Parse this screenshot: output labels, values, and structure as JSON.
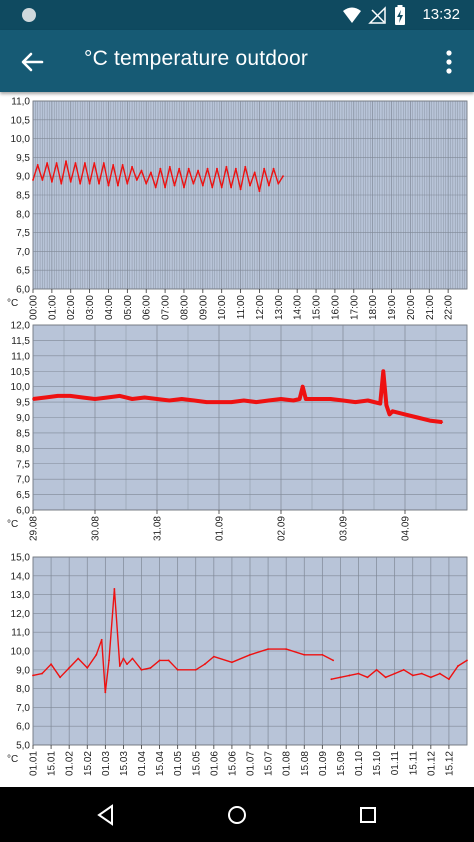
{
  "status_bar": {
    "time": "13:32",
    "icons": [
      "notification-dot-icon",
      "wifi-icon",
      "no-signal-icon",
      "battery-charging-icon"
    ]
  },
  "app_bar": {
    "title": "°C temperature outdoor",
    "back_icon": "arrow-back-icon",
    "menu_icon": "more-vert-icon"
  },
  "nav_bar": {
    "icons": [
      "nav-back-icon",
      "nav-home-icon",
      "nav-recents-icon"
    ]
  },
  "colors": {
    "plot_background": "#b8c4d8",
    "grid": "#7f8896",
    "series": "#ee1111",
    "app_bar": "#165a74",
    "status_bar": "#0f4a60"
  },
  "chart_data": [
    {
      "type": "line",
      "ylabel": "°C",
      "ylim": [
        6.0,
        11.0
      ],
      "yticks": [
        "6,0",
        "6,5",
        "7,0",
        "7,5",
        "8,0",
        "8,5",
        "9,0",
        "9,5",
        "10,0",
        "10,5",
        "11,0"
      ],
      "xticks": [
        "00:00",
        "01:00",
        "02:00",
        "03:00",
        "04:00",
        "05:00",
        "06:00",
        "07:00",
        "08:00",
        "09:00",
        "10:00",
        "11:00",
        "12:00",
        "13:00",
        "14:00",
        "15:00",
        "16:00",
        "17:00",
        "18:00",
        "19:00",
        "20:00",
        "21:00",
        "22:00"
      ],
      "xlim": [
        0,
        23
      ],
      "series": [
        {
          "x": [
            0.0,
            0.25,
            0.5,
            0.75,
            1.0,
            1.25,
            1.5,
            1.75,
            2.0,
            2.25,
            2.5,
            2.75,
            3.0,
            3.25,
            3.5,
            3.75,
            4.0,
            4.25,
            4.5,
            4.75,
            5.0,
            5.25,
            5.5,
            5.75,
            6.0,
            6.25,
            6.5,
            6.75,
            7.0,
            7.25,
            7.5,
            7.75,
            8.0,
            8.25,
            8.5,
            8.75,
            9.0,
            9.25,
            9.5,
            9.75,
            10.0,
            10.25,
            10.5,
            10.75,
            11.0,
            11.25,
            11.5,
            11.75,
            12.0,
            12.25,
            12.5,
            12.75,
            13.0,
            13.25
          ],
          "values": [
            8.9,
            9.3,
            8.9,
            9.35,
            8.85,
            9.35,
            8.8,
            9.4,
            8.85,
            9.35,
            8.8,
            9.35,
            8.8,
            9.35,
            8.8,
            9.35,
            8.75,
            9.3,
            8.75,
            9.3,
            8.8,
            9.25,
            8.9,
            9.15,
            8.8,
            9.1,
            8.7,
            9.2,
            8.7,
            9.25,
            8.75,
            9.2,
            8.7,
            9.2,
            8.8,
            9.15,
            8.75,
            9.2,
            8.7,
            9.2,
            8.7,
            9.25,
            8.7,
            9.2,
            8.65,
            9.25,
            8.75,
            9.1,
            8.6,
            9.2,
            8.75,
            9.2,
            8.8,
            9.0
          ]
        }
      ]
    },
    {
      "type": "line",
      "ylabel": "°C",
      "ylim": [
        6.0,
        12.0
      ],
      "yticks": [
        "6,0",
        "6,5",
        "7,0",
        "7,5",
        "8,0",
        "8,5",
        "9,0",
        "9,5",
        "10,0",
        "10,5",
        "11,0",
        "11,5",
        "12,0"
      ],
      "xticks": [
        "29.08",
        "30.08",
        "31.08",
        "01.09",
        "02.09",
        "03.09",
        "04.09"
      ],
      "xlim": [
        0,
        7
      ],
      "series": [
        {
          "x": [
            0,
            0.2,
            0.4,
            0.6,
            0.8,
            1.0,
            1.2,
            1.4,
            1.6,
            1.8,
            2.0,
            2.2,
            2.4,
            2.6,
            2.8,
            3.0,
            3.2,
            3.4,
            3.6,
            3.8,
            4.0,
            4.2,
            4.3,
            4.35,
            4.4,
            4.6,
            4.8,
            5.0,
            5.2,
            5.4,
            5.6,
            5.65,
            5.7,
            5.75,
            5.8,
            6.0,
            6.2,
            6.4,
            6.6
          ],
          "values": [
            9.6,
            9.65,
            9.7,
            9.7,
            9.65,
            9.6,
            9.65,
            9.7,
            9.6,
            9.65,
            9.6,
            9.55,
            9.6,
            9.55,
            9.5,
            9.5,
            9.5,
            9.55,
            9.5,
            9.55,
            9.6,
            9.55,
            9.6,
            10.0,
            9.6,
            9.6,
            9.6,
            9.55,
            9.5,
            9.55,
            9.45,
            10.5,
            9.4,
            9.1,
            9.2,
            9.1,
            9.0,
            8.9,
            8.85
          ]
        }
      ]
    },
    {
      "type": "line",
      "ylabel": "°C",
      "ylim": [
        5.0,
        15.0
      ],
      "yticks": [
        "5,0",
        "6,0",
        "7,0",
        "8,0",
        "9,0",
        "10,0",
        "11,0",
        "12,0",
        "13,0",
        "14,0",
        "15,0"
      ],
      "xticks": [
        "01.01",
        "15.01",
        "01.02",
        "15.02",
        "01.03",
        "15.03",
        "01.04",
        "15.04",
        "01.05",
        "15.05",
        "01.06",
        "15.06",
        "01.07",
        "15.07",
        "01.08",
        "15.08",
        "01.09",
        "15.09",
        "01.10",
        "15.10",
        "01.11",
        "15.11",
        "01.12",
        "15.12"
      ],
      "xlim": [
        0,
        24
      ],
      "series": [
        {
          "x": [
            0,
            0.5,
            1.0,
            1.5,
            2.0,
            2.5,
            3.0,
            3.5,
            3.8,
            4.0,
            4.2,
            4.5,
            4.8,
            5.0,
            5.2,
            5.5,
            6.0,
            6.5,
            7.0,
            7.5,
            8.0,
            9.0,
            9.5,
            10.0,
            11.0,
            12.0,
            13.0,
            14.0,
            15.0,
            16.0,
            16.6
          ],
          "values": [
            8.7,
            8.8,
            9.3,
            8.6,
            9.1,
            9.6,
            9.1,
            9.8,
            10.6,
            7.8,
            9.5,
            13.3,
            9.2,
            9.6,
            9.3,
            9.6,
            9.0,
            9.1,
            9.5,
            9.5,
            9.0,
            9.0,
            9.3,
            9.7,
            9.4,
            9.8,
            10.1,
            10.1,
            9.8,
            9.8,
            9.5
          ]
        },
        {
          "x": [
            16.5,
            17.0,
            17.5,
            18.0,
            18.5,
            19.0,
            19.5,
            20.0,
            20.5,
            21.0,
            21.5,
            22.0,
            22.5,
            23.0,
            23.5,
            24.0
          ],
          "values": [
            8.5,
            8.6,
            8.7,
            8.8,
            8.6,
            9.0,
            8.6,
            8.8,
            9.0,
            8.7,
            8.8,
            8.6,
            8.8,
            8.5,
            9.2,
            9.5
          ]
        }
      ]
    }
  ]
}
